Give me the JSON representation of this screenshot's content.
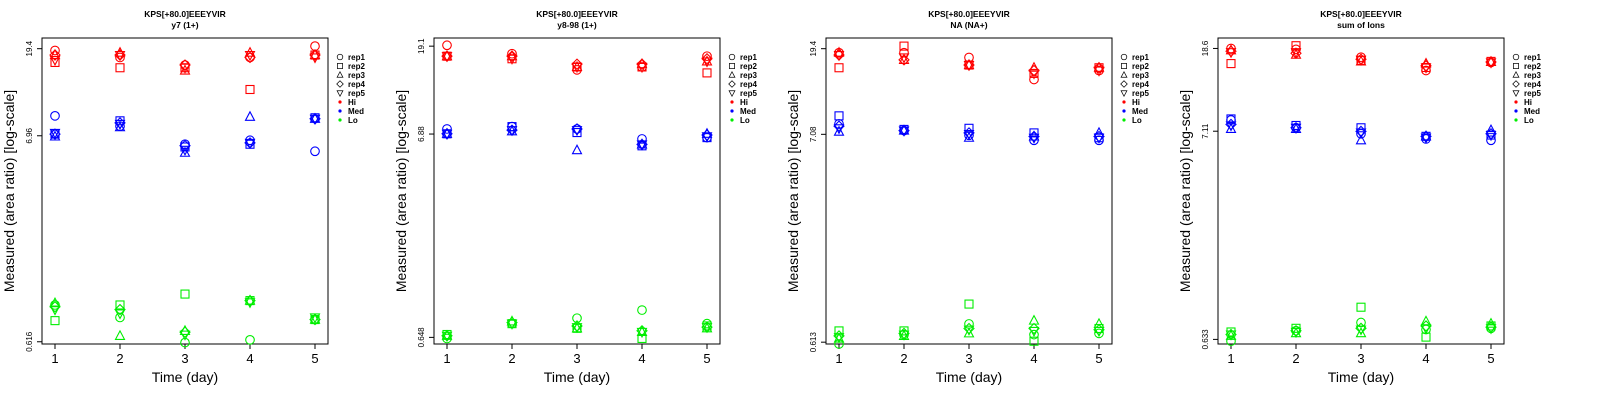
{
  "chart_data": [
    {
      "type": "scatter",
      "title": "KPS[+80.0]EEEYVIR",
      "subtitle": "y7 (1+)",
      "xlabel": "Time (day)",
      "ylabel": "Measured (area ratio) [log-scale]",
      "y_scale": "log",
      "x_ticks": [
        1,
        2,
        3,
        4,
        5
      ],
      "y_ticks": [
        "0.616",
        "6.96",
        "19.4"
      ],
      "ylim": [
        0.6,
        22
      ],
      "xlim": [
        0.8,
        5.2
      ],
      "legend": {
        "position": "right",
        "reps": [
          "rep1",
          "rep2",
          "rep3",
          "rep4",
          "rep5"
        ],
        "levels": [
          "Hi",
          "Med",
          "Lo"
        ]
      },
      "colors": {
        "Hi": "#ff0000",
        "Med": "#0000ff",
        "Lo": "#00ee00"
      },
      "points": {
        "Hi": {
          "rep1": [
            19.0,
            17.5,
            16.0,
            17.5,
            20.0
          ],
          "rep2": [
            16.5,
            15.5,
            15.5,
            12.0,
            18.0
          ],
          "rep3": [
            18.0,
            18.5,
            15.0,
            18.5,
            18.0
          ],
          "rep4": [
            18.0,
            18.0,
            16.0,
            17.5,
            18.0
          ],
          "rep5": [
            17.0,
            18.0,
            15.5,
            18.0,
            17.5
          ]
        },
        "Med": {
          "rep1": [
            8.8,
            7.8,
            6.3,
            6.6,
            5.8
          ],
          "rep2": [
            7.1,
            8.3,
            6.1,
            6.3,
            8.6
          ],
          "rep3": [
            6.9,
            7.7,
            5.7,
            8.7,
            8.5
          ],
          "rep4": [
            7.1,
            8.1,
            6.2,
            6.4,
            8.5
          ],
          "rep5": [
            7.2,
            8.0,
            5.9,
            6.4,
            8.5
          ]
        },
        "Lo": {
          "rep1": [
            0.95,
            0.82,
            0.61,
            0.63,
            0.8
          ],
          "rep2": [
            0.79,
            0.95,
            1.08,
            1.0,
            0.8
          ],
          "rep3": [
            0.97,
            0.66,
            0.7,
            1.0,
            0.8
          ],
          "rep4": [
            0.93,
            0.9,
            0.69,
            1.0,
            0.8
          ],
          "rep5": [
            0.9,
            0.86,
            0.67,
            0.98,
            0.82
          ]
        }
      }
    },
    {
      "type": "scatter",
      "title": "KPS[+80.0]EEEYVIR",
      "subtitle": "y8-98 (1+)",
      "xlabel": "Time (day)",
      "ylabel": "Measured (area ratio) [log-scale]",
      "y_scale": "log",
      "x_ticks": [
        1,
        2,
        3,
        4,
        5
      ],
      "y_ticks": [
        "0.648",
        "6.88",
        "19.1"
      ],
      "ylim": [
        0.6,
        21
      ],
      "xlim": [
        0.8,
        5.2
      ],
      "legend": {
        "position": "right",
        "reps": [
          "rep1",
          "rep2",
          "rep3",
          "rep4",
          "rep5"
        ],
        "levels": [
          "Hi",
          "Med",
          "Lo"
        ]
      },
      "colors": {
        "Hi": "#ff0000",
        "Med": "#0000ff",
        "Lo": "#00ee00"
      },
      "points": {
        "Hi": {
          "rep1": [
            19.3,
            17.5,
            14.5,
            15.0,
            17.0
          ],
          "rep2": [
            17.0,
            16.5,
            15.0,
            15.0,
            14.0
          ],
          "rep3": [
            17.0,
            17.0,
            15.0,
            15.5,
            16.0
          ],
          "rep4": [
            17.0,
            17.0,
            15.5,
            15.5,
            16.5
          ],
          "rep5": [
            17.0,
            16.5,
            15.0,
            15.0,
            16.0
          ]
        },
        "Med": {
          "rep1": [
            7.3,
            7.5,
            7.3,
            6.5,
            6.6
          ],
          "rep2": [
            6.9,
            7.5,
            7.0,
            6.0,
            6.6
          ],
          "rep3": [
            6.9,
            7.1,
            5.7,
            6.1,
            6.9
          ],
          "rep4": [
            6.9,
            7.2,
            7.3,
            6.1,
            6.8
          ],
          "rep5": [
            6.9,
            7.2,
            7.2,
            6.1,
            6.7
          ]
        },
        "Lo": {
          "rep1": [
            0.64,
            0.76,
            0.81,
            0.89,
            0.76
          ],
          "rep2": [
            0.67,
            0.76,
            0.72,
            0.64,
            0.74
          ],
          "rep3": [
            0.66,
            0.78,
            0.72,
            0.69,
            0.72
          ],
          "rep4": [
            0.66,
            0.77,
            0.74,
            0.7,
            0.73
          ],
          "rep5": [
            0.66,
            0.76,
            0.73,
            0.69,
            0.73
          ]
        }
      }
    },
    {
      "type": "scatter",
      "title": "KPS[+80.0]EEEYVIR",
      "subtitle": "NA (NA+)",
      "xlabel": "Time (day)",
      "ylabel": "Measured (area ratio) [log-scale]",
      "y_scale": "log",
      "x_ticks": [
        1,
        2,
        3,
        4,
        5
      ],
      "y_ticks": [
        "0.613",
        "7.08",
        "19.4"
      ],
      "ylim": [
        0.6,
        22
      ],
      "xlim": [
        0.8,
        5.2
      ],
      "legend": {
        "position": "right",
        "reps": [
          "rep1",
          "rep2",
          "rep3",
          "rep4",
          "rep5"
        ],
        "levels": [
          "Hi",
          "Med",
          "Lo"
        ]
      },
      "colors": {
        "Hi": "#ff0000",
        "Med": "#0000ff",
        "Lo": "#00ee00"
      },
      "points": {
        "Hi": {
          "rep1": [
            18.5,
            18.5,
            17.5,
            13.5,
            15.0
          ],
          "rep2": [
            15.5,
            20.0,
            16.0,
            14.5,
            15.5
          ],
          "rep3": [
            18.5,
            17.0,
            16.0,
            15.5,
            15.5
          ],
          "rep4": [
            18.0,
            17.0,
            16.0,
            15.0,
            15.5
          ],
          "rep5": [
            18.0,
            17.5,
            16.0,
            14.5,
            15.0
          ]
        },
        "Med": {
          "rep1": [
            8.0,
            7.4,
            7.0,
            6.6,
            6.6
          ],
          "rep2": [
            8.8,
            7.5,
            7.6,
            7.2,
            6.8
          ],
          "rep3": [
            7.3,
            7.4,
            6.8,
            6.9,
            7.2
          ],
          "rep4": [
            7.8,
            7.4,
            7.2,
            6.9,
            6.9
          ],
          "rep5": [
            7.6,
            7.4,
            7.1,
            6.8,
            6.8
          ]
        },
        "Lo": {
          "rep1": [
            0.6,
            0.67,
            0.76,
            0.67,
            0.68
          ],
          "rep2": [
            0.7,
            0.7,
            0.96,
            0.62,
            0.72
          ],
          "rep3": [
            0.64,
            0.66,
            0.68,
            0.79,
            0.76
          ],
          "rep4": [
            0.66,
            0.68,
            0.72,
            0.72,
            0.71
          ],
          "rep5": [
            0.65,
            0.67,
            0.71,
            0.7,
            0.7
          ]
        }
      }
    },
    {
      "type": "scatter",
      "title": "KPS[+80.0]EEEYVIR",
      "subtitle": "sum of Ions",
      "xlabel": "Time (day)",
      "ylabel": "Measured (area ratio) [log-scale]",
      "y_scale": "log",
      "x_ticks": [
        1,
        2,
        3,
        4,
        5
      ],
      "y_ticks": [
        "0.633",
        "7.11",
        "18.6"
      ],
      "ylim": [
        0.6,
        21
      ],
      "xlim": [
        0.8,
        5.2
      ],
      "legend": {
        "position": "right",
        "reps": [
          "rep1",
          "rep2",
          "rep3",
          "rep4",
          "rep5"
        ],
        "levels": [
          "Hi",
          "Med",
          "Lo"
        ]
      },
      "colors": {
        "Hi": "#ff0000",
        "Med": "#0000ff",
        "Lo": "#00ee00"
      },
      "points": {
        "Hi": {
          "rep1": [
            18.6,
            18.4,
            16.8,
            14.4,
            15.8
          ],
          "rep2": [
            15.6,
            19.2,
            16.2,
            14.9,
            16.0
          ],
          "rep3": [
            18.2,
            17.3,
            16.0,
            15.6,
            15.9
          ],
          "rep4": [
            18.0,
            17.6,
            16.4,
            15.2,
            15.9
          ],
          "rep5": [
            17.8,
            17.8,
            16.3,
            14.9,
            15.8
          ]
        },
        "Med": {
          "rep1": [
            8.1,
            7.4,
            6.9,
            6.5,
            6.4
          ],
          "rep2": [
            8.2,
            7.6,
            7.4,
            6.7,
            6.8
          ],
          "rep3": [
            7.3,
            7.3,
            6.4,
            6.7,
            7.2
          ],
          "rep4": [
            7.7,
            7.4,
            7.1,
            6.7,
            6.9
          ],
          "rep5": [
            7.6,
            7.4,
            7.0,
            6.6,
            6.8
          ]
        },
        "Lo": {
          "rep1": [
            0.62,
            0.7,
            0.77,
            0.71,
            0.72
          ],
          "rep2": [
            0.69,
            0.72,
            0.92,
            0.65,
            0.74
          ],
          "rep3": [
            0.66,
            0.68,
            0.68,
            0.78,
            0.76
          ],
          "rep4": [
            0.67,
            0.7,
            0.72,
            0.74,
            0.73
          ],
          "rep5": [
            0.67,
            0.69,
            0.71,
            0.72,
            0.72
          ]
        }
      }
    }
  ]
}
